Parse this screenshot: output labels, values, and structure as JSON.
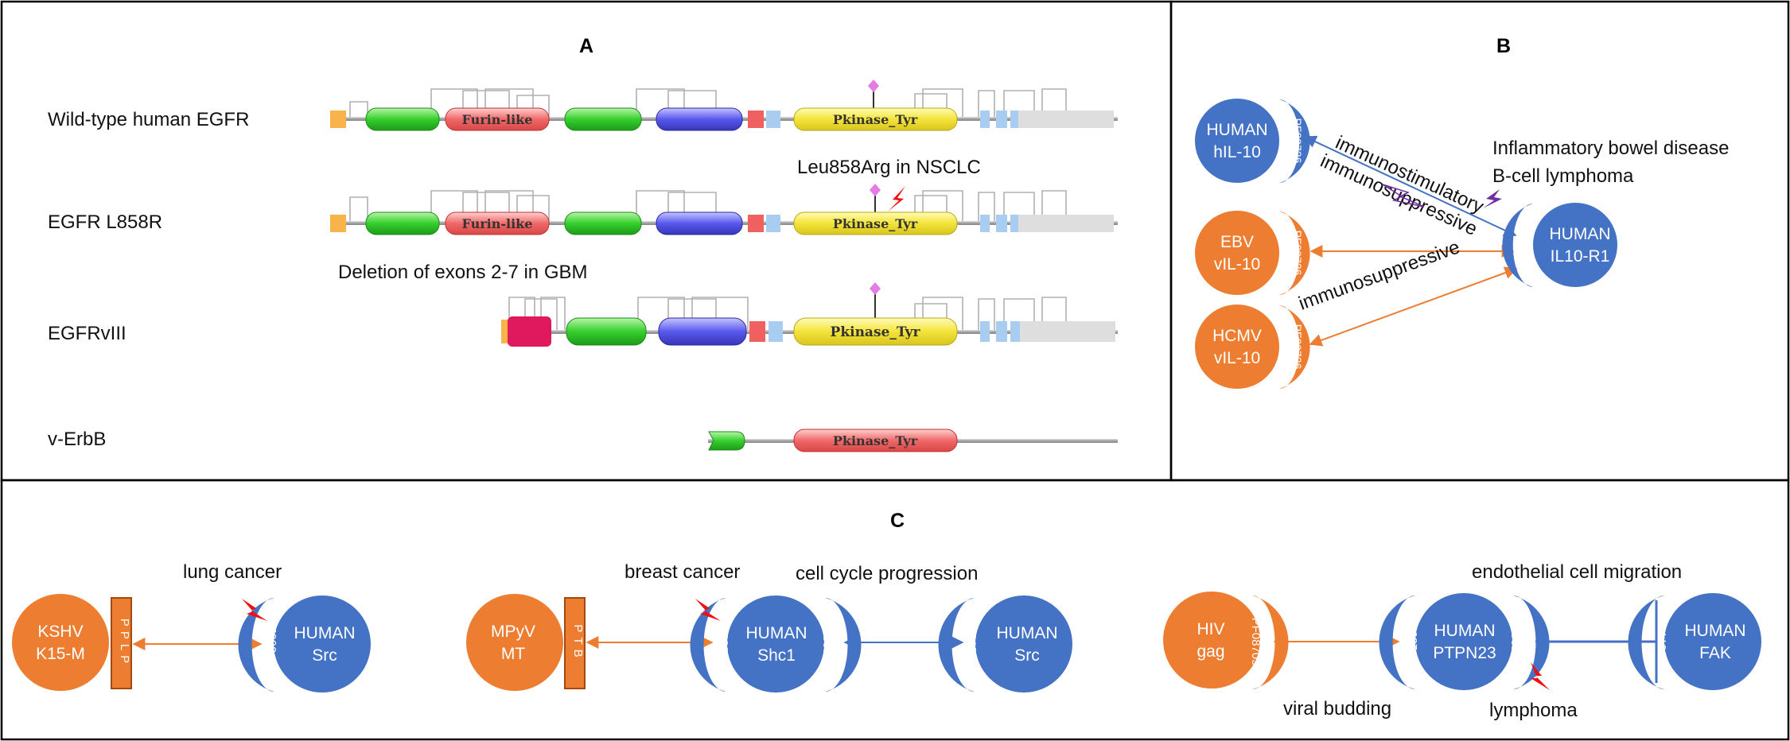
{
  "panels": {
    "a": "A",
    "b": "B",
    "c": "C"
  },
  "panel_a": {
    "rows": [
      {
        "label": "Wild-type human EGFR",
        "domain1": "Furin-like",
        "kinase": "Pkinase_Tyr"
      },
      {
        "label": "EGFR L858R",
        "domain1": "Furin-like",
        "kinase": "Pkinase_Tyr"
      },
      {
        "label": "EGFRvIII",
        "kinase": "Pkinase_Tyr"
      },
      {
        "label": "v-ErbB",
        "kinase": "Pkinase_Tyr"
      }
    ],
    "mutation_note": "Leu858Arg in NSCLC",
    "deletion_note": "Deletion of exons 2-7 in GBM"
  },
  "panel_b": {
    "nodes": {
      "hil10": {
        "line1": "HUMAN",
        "line2": "hIL-10",
        "domain": "PF00726"
      },
      "ebv": {
        "line1": "EBV",
        "line2": "vIL-10",
        "domain": "PF00726"
      },
      "hcmv": {
        "line1": "HCMV",
        "line2": "vIL-10",
        "domain": "PF00726"
      },
      "il10r1": {
        "line1": "HUMAN",
        "line2": "IL10-R1",
        "domain": "PF01108"
      }
    },
    "edge_labels": {
      "immunostimulatory": "immunostimulatory",
      "immunosuppressive_1": "immunosuppressive",
      "immunosuppressive_2": "immunosuppressive"
    },
    "diseases": [
      "Inflammatory bowel disease",
      "B-cell lymphoma"
    ]
  },
  "panel_c": {
    "groups": [
      {
        "virus": {
          "line1": "KSHV",
          "line2": "K15-M",
          "motif": "PPLP"
        },
        "human": {
          "line1": "HUMAN",
          "line2": "Src",
          "domain": "PF00018"
        },
        "disease": "lung cancer"
      },
      {
        "virus": {
          "line1": "MPyV",
          "line2": "MT",
          "motif": "PTB"
        },
        "human": {
          "line1": "HUMAN",
          "line2": "Shc1",
          "domain_left": "PF00640",
          "domain_right": "PF00017"
        },
        "partner": {
          "line1": "HUMAN",
          "line2": "Src",
          "domain": "PF07714"
        },
        "disease": "breast cancer",
        "process": "cell cycle progression"
      },
      {
        "virus": {
          "line1": "HIV",
          "line2": "gag",
          "domain": "PF08705"
        },
        "human": {
          "line1": "HUMAN",
          "line2": "PTPN23",
          "domain_left": "PF13949",
          "domain_right": "PF00102"
        },
        "partner": {
          "line1": "HUMAN",
          "line2": "FAK",
          "domain": "PF07714"
        },
        "process_bottom": "viral budding",
        "disease_bottom": "lymphoma",
        "process": "endothelial cell migration"
      }
    ]
  },
  "colors": {
    "human": "#4472c4",
    "viral": "#ed7d31",
    "red_flash": "#ee1111",
    "lollipop": "#e37ce3",
    "purple_flash": "#7030a0"
  }
}
